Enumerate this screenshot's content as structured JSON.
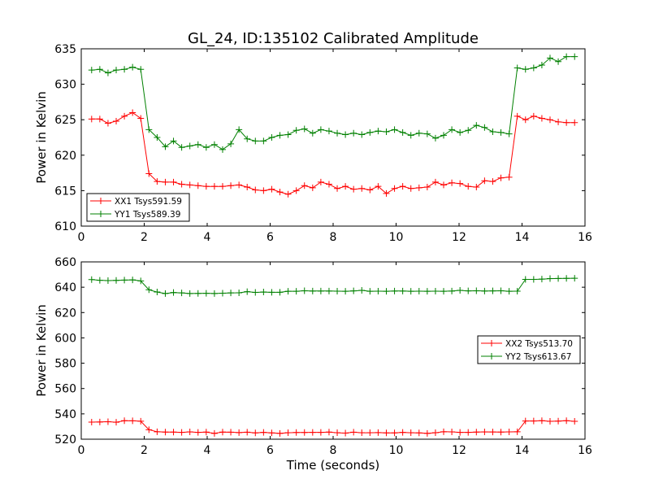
{
  "title": "GL_24, ID:135102 Calibrated Amplitude",
  "colors": {
    "red": "#ff0000",
    "green": "#008000"
  },
  "chart_data": [
    {
      "type": "line",
      "xlabel": "",
      "ylabel": "Power in Kelvin",
      "xlim": [
        0,
        16
      ],
      "ylim": [
        610,
        635
      ],
      "x_ticks": [
        0,
        2,
        4,
        6,
        8,
        10,
        12,
        14,
        16
      ],
      "y_ticks": [
        610,
        615,
        620,
        625,
        630,
        635
      ],
      "grid": false,
      "legend_position": "lower-left",
      "x": [
        0.33,
        0.59,
        0.85,
        1.11,
        1.37,
        1.63,
        1.89,
        2.15,
        2.41,
        2.67,
        2.93,
        3.19,
        3.45,
        3.71,
        3.97,
        4.23,
        4.49,
        4.75,
        5.01,
        5.27,
        5.53,
        5.79,
        6.05,
        6.31,
        6.57,
        6.83,
        7.09,
        7.35,
        7.61,
        7.87,
        8.13,
        8.39,
        8.65,
        8.91,
        9.17,
        9.43,
        9.69,
        9.95,
        10.21,
        10.47,
        10.73,
        10.99,
        11.25,
        11.51,
        11.77,
        12.03,
        12.29,
        12.55,
        12.81,
        13.07,
        13.33,
        13.59,
        13.85,
        14.11,
        14.37,
        14.63,
        14.89,
        15.15,
        15.41,
        15.67
      ],
      "series": [
        {
          "name": "XX1 Tsys591.59",
          "color": "#ff0000",
          "values": [
            625.1,
            625.1,
            624.5,
            624.8,
            625.5,
            626.0,
            625.2,
            617.4,
            616.3,
            616.2,
            616.2,
            615.9,
            615.8,
            615.7,
            615.6,
            615.6,
            615.6,
            615.7,
            615.8,
            615.5,
            615.1,
            615.0,
            615.2,
            614.8,
            614.5,
            615.0,
            615.7,
            615.4,
            616.2,
            615.9,
            615.3,
            615.6,
            615.2,
            615.3,
            615.1,
            615.6,
            614.6,
            615.3,
            615.6,
            615.3,
            615.4,
            615.5,
            616.2,
            615.8,
            616.1,
            616.0,
            615.6,
            615.5,
            616.4,
            616.3,
            616.8,
            616.9,
            625.5,
            625.0,
            625.5,
            625.2,
            625.0,
            624.7,
            624.6,
            624.6
          ]
        },
        {
          "name": "YY1 Tsys589.39",
          "color": "#008000",
          "values": [
            632.0,
            632.1,
            631.6,
            632.0,
            632.1,
            632.4,
            632.1,
            623.6,
            622.5,
            621.2,
            622.0,
            621.1,
            621.3,
            621.5,
            621.1,
            621.5,
            620.8,
            621.6,
            623.6,
            622.3,
            622.0,
            622.0,
            622.5,
            622.8,
            622.9,
            623.5,
            623.7,
            623.1,
            623.6,
            623.4,
            623.1,
            622.9,
            623.1,
            622.9,
            623.2,
            623.4,
            623.3,
            623.6,
            623.2,
            622.8,
            623.1,
            623.0,
            622.4,
            622.8,
            623.6,
            623.2,
            623.5,
            624.2,
            623.9,
            623.3,
            623.2,
            623.0,
            632.3,
            632.1,
            632.3,
            632.7,
            633.7,
            633.2,
            633.9,
            633.9
          ]
        }
      ]
    },
    {
      "type": "line",
      "xlabel": "Time (seconds)",
      "ylabel": "Power in Kelvin",
      "xlim": [
        0,
        16
      ],
      "ylim": [
        520,
        660
      ],
      "x_ticks": [
        0,
        2,
        4,
        6,
        8,
        10,
        12,
        14,
        16
      ],
      "y_ticks": [
        520,
        540,
        560,
        580,
        600,
        620,
        640,
        660
      ],
      "grid": false,
      "legend_position": "center-right",
      "x": [
        0.33,
        0.59,
        0.85,
        1.11,
        1.37,
        1.63,
        1.89,
        2.15,
        2.41,
        2.67,
        2.93,
        3.19,
        3.45,
        3.71,
        3.97,
        4.23,
        4.49,
        4.75,
        5.01,
        5.27,
        5.53,
        5.79,
        6.05,
        6.31,
        6.57,
        6.83,
        7.09,
        7.35,
        7.61,
        7.87,
        8.13,
        8.39,
        8.65,
        8.91,
        9.17,
        9.43,
        9.69,
        9.95,
        10.21,
        10.47,
        10.73,
        10.99,
        11.25,
        11.51,
        11.77,
        12.03,
        12.29,
        12.55,
        12.81,
        13.07,
        13.33,
        13.59,
        13.85,
        14.11,
        14.37,
        14.63,
        14.89,
        15.15,
        15.41,
        15.67
      ],
      "series": [
        {
          "name": "XX2 Tsys513.70",
          "color": "#ff0000",
          "values": [
            533.5,
            533.6,
            533.8,
            533.4,
            534.6,
            534.5,
            534.2,
            527.5,
            525.9,
            525.6,
            525.6,
            525.4,
            525.8,
            525.4,
            525.6,
            524.6,
            525.6,
            525.5,
            525.2,
            525.5,
            525.0,
            525.4,
            525.0,
            524.6,
            525.1,
            525.3,
            525.3,
            525.4,
            525.4,
            525.6,
            525.1,
            524.8,
            525.5,
            525.1,
            525.1,
            525.2,
            525.0,
            525.0,
            525.4,
            525.1,
            525.0,
            524.6,
            525.1,
            525.9,
            525.8,
            525.4,
            525.4,
            525.6,
            525.8,
            525.7,
            525.6,
            525.8,
            525.9,
            534.4,
            534.4,
            534.6,
            534.1,
            534.3,
            534.6,
            534.1
          ]
        },
        {
          "name": "YY2 Tsys613.67",
          "color": "#008000",
          "values": [
            646.0,
            645.5,
            645.2,
            645.4,
            645.6,
            645.8,
            645.0,
            638.0,
            636.2,
            635.0,
            635.8,
            635.5,
            635.0,
            635.1,
            635.2,
            635.0,
            635.3,
            635.5,
            635.6,
            636.5,
            635.9,
            636.2,
            636.0,
            636.0,
            636.8,
            636.8,
            637.2,
            637.0,
            637.0,
            637.0,
            636.9,
            636.8,
            637.1,
            637.5,
            636.8,
            636.9,
            636.8,
            637.0,
            637.0,
            636.8,
            636.9,
            636.8,
            636.9,
            636.8,
            637.0,
            637.5,
            637.1,
            637.2,
            637.0,
            637.1,
            637.2,
            636.8,
            636.9,
            646.2,
            646.2,
            646.4,
            646.8,
            646.9,
            647.0,
            647.1
          ]
        }
      ]
    }
  ]
}
